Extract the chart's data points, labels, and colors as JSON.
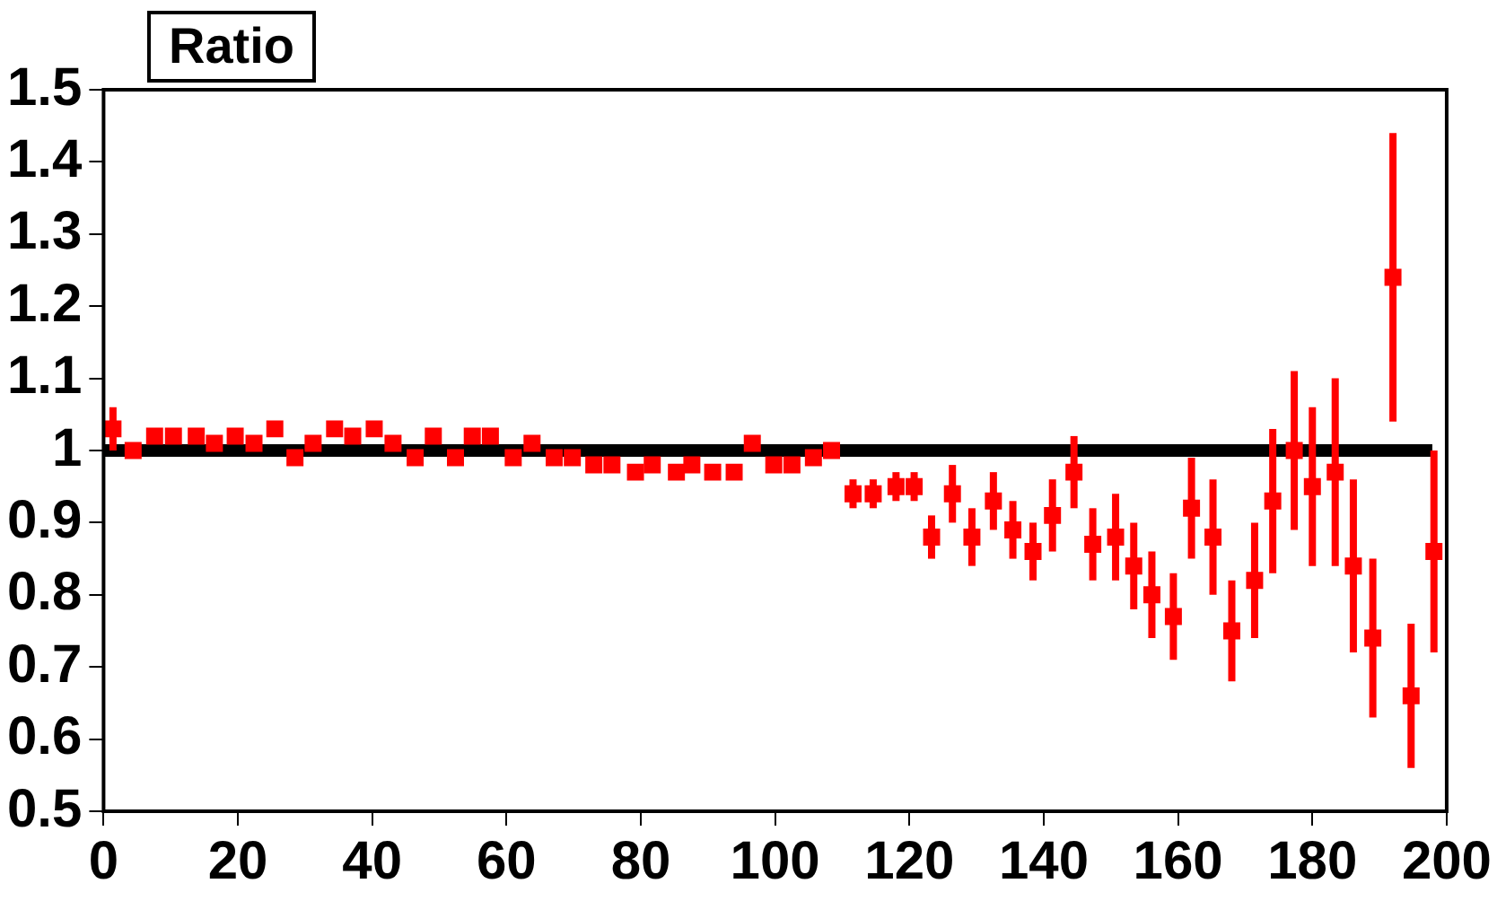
{
  "chart_data": {
    "type": "scatter",
    "title": "Ratio",
    "xlim": [
      0,
      200
    ],
    "xticks": [
      0,
      20,
      40,
      60,
      80,
      100,
      120,
      140,
      160,
      180,
      200
    ],
    "ylim": [
      0.5,
      1.5
    ],
    "yticks": [
      {
        "value": 0.5,
        "label": "0.5"
      },
      {
        "value": 0.6,
        "label": "0.6"
      },
      {
        "value": 0.7,
        "label": "0.7"
      },
      {
        "value": 0.8,
        "label": "0.8"
      },
      {
        "value": 0.9,
        "label": "0.9"
      },
      {
        "value": 1,
        "label": "1"
      },
      {
        "value": 1.1,
        "label": "1.1"
      },
      {
        "value": 1.2,
        "label": "1.2"
      },
      {
        "value": 1.3,
        "label": "1.3"
      },
      {
        "value": 1.4,
        "label": "1.4"
      },
      {
        "value": 1.5,
        "label": "1.5"
      }
    ],
    "grid": false,
    "legend": false,
    "marker": "square",
    "ref_lines": [
      {
        "axis": "y",
        "value": 1,
        "color": "#000000"
      }
    ],
    "series": [
      {
        "color": "#ff0000",
        "x": [
          1.4,
          4.4,
          7.6,
          10.4,
          13.8,
          16.5,
          19.6,
          22.4,
          25.5,
          28.5,
          31.2,
          34.4,
          37.1,
          40.3,
          43.1,
          46.4,
          49.1,
          52.4,
          54.9,
          57.6,
          61,
          63.8,
          67.1,
          69.8,
          73,
          75.7,
          79.2,
          81.7,
          85.3,
          87.6,
          90.7,
          93.9,
          96.6,
          99.8,
          102.5,
          105.7,
          108.4,
          111.6,
          114.6,
          118,
          120.7,
          123.3,
          126.4,
          129.3,
          132.5,
          135.4,
          138.4,
          141.3,
          144.5,
          147.3,
          150.7,
          153.4,
          156.1,
          159.3,
          162,
          165.2,
          168,
          171.4,
          174.1,
          177.3,
          180,
          183.4,
          186.1,
          189,
          192,
          194.7,
          198.1
        ],
        "values": [
          1.03,
          1,
          1.02,
          1.02,
          1.02,
          1.01,
          1.02,
          1.01,
          1.03,
          0.99,
          1.01,
          1.03,
          1.02,
          1.03,
          1.01,
          0.99,
          1.02,
          0.99,
          1.02,
          1.02,
          0.99,
          1.01,
          0.99,
          0.99,
          0.98,
          0.98,
          0.97,
          0.98,
          0.97,
          0.98,
          0.97,
          0.97,
          1.01,
          0.98,
          0.98,
          0.99,
          1,
          0.94,
          0.94,
          0.95,
          0.95,
          0.88,
          0.94,
          0.88,
          0.93,
          0.89,
          0.86,
          0.91,
          0.97,
          0.87,
          0.88,
          0.84,
          0.8,
          0.77,
          0.92,
          0.88,
          0.75,
          0.82,
          0.93,
          1,
          0.95,
          0.97,
          0.84,
          0.74,
          1.24,
          0.66,
          0.86
        ],
        "errors": [
          0.03,
          0.01,
          0.01,
          0.01,
          0.01,
          0.01,
          0.01,
          0.01,
          0.01,
          0.01,
          0.01,
          0.01,
          0.01,
          0.01,
          0.01,
          0.01,
          0.01,
          0.01,
          0.01,
          0.01,
          0.01,
          0.01,
          0.01,
          0.01,
          0.01,
          0.01,
          0.01,
          0.01,
          0.01,
          0.01,
          0.01,
          0.01,
          0.01,
          0.01,
          0.01,
          0.01,
          0.01,
          0.02,
          0.02,
          0.02,
          0.02,
          0.03,
          0.04,
          0.04,
          0.04,
          0.04,
          0.04,
          0.05,
          0.05,
          0.05,
          0.06,
          0.06,
          0.06,
          0.06,
          0.07,
          0.08,
          0.07,
          0.08,
          0.1,
          0.11,
          0.11,
          0.13,
          0.12,
          0.11,
          0.2,
          0.1,
          0.14
        ]
      }
    ]
  }
}
